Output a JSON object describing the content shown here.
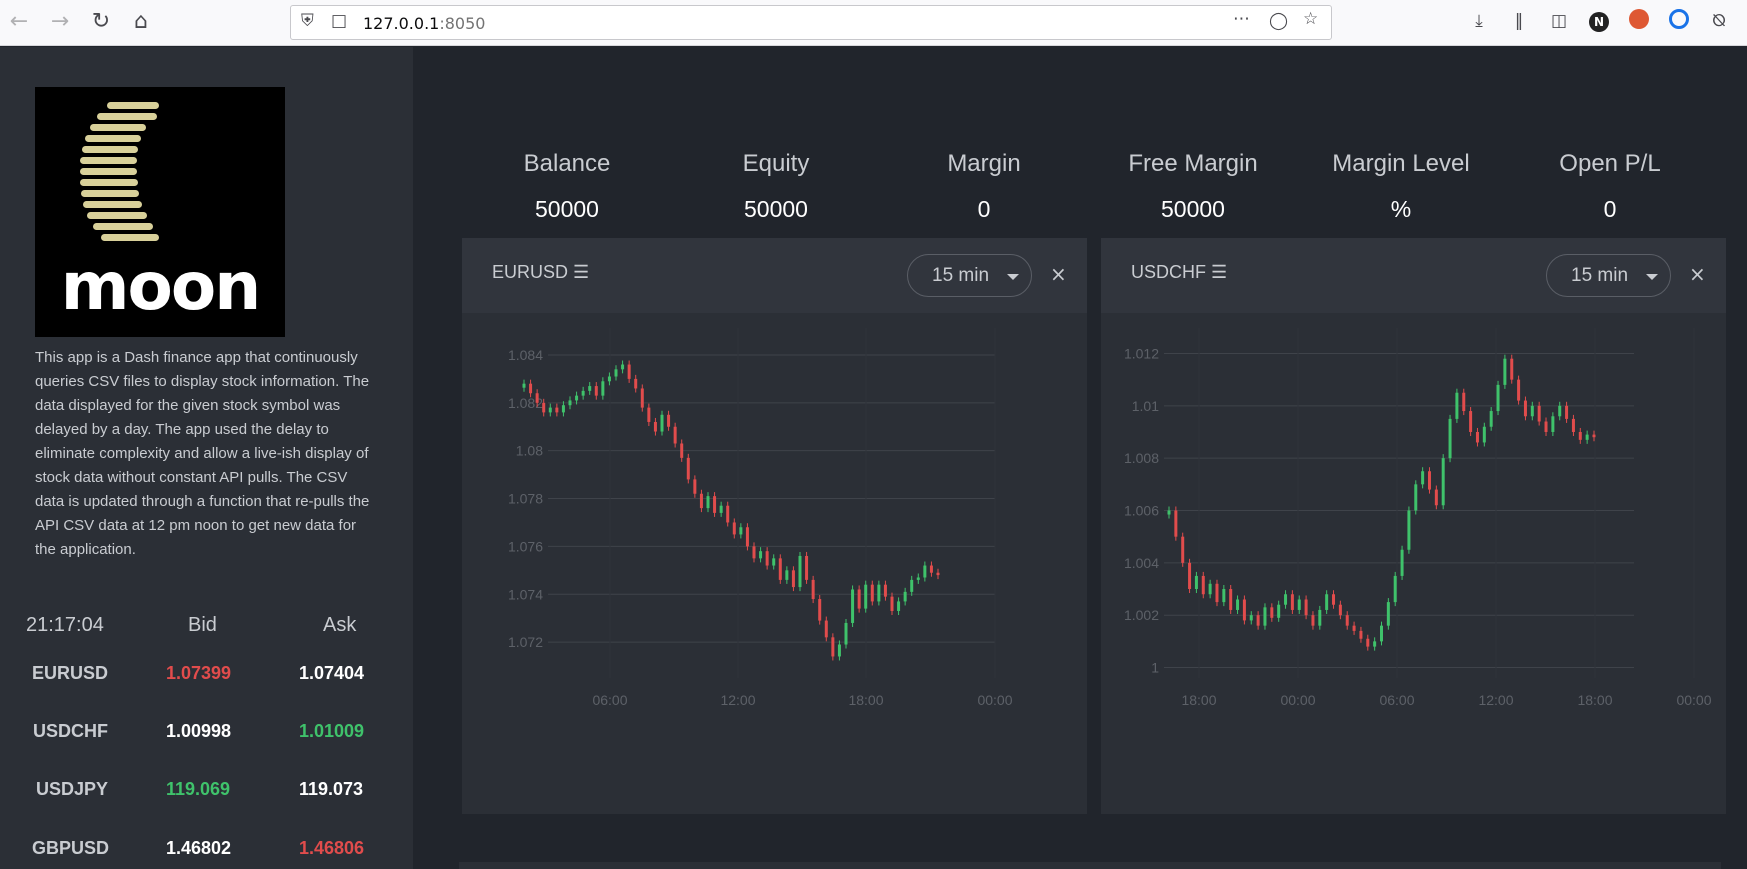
{
  "browser": {
    "url_host": "127.0.0.1",
    "url_port": ":8050",
    "icons": [
      "back-icon",
      "forward-icon",
      "reload-icon",
      "home-icon",
      "shield-icon",
      "page-icon",
      "more-icon",
      "pocket-icon",
      "star-icon",
      "download-icon",
      "library-icon",
      "sidebar-icon",
      "extension-n-icon",
      "extension-duck-icon",
      "extension-clock-icon",
      "extension-slash-icon"
    ]
  },
  "sidebar": {
    "logo_text": "moon",
    "description": "This app is a Dash finance app that continuously queries CSV files to display stock information. The data displayed for the given stock symbol was delayed by a day. The app used the delay to eliminate complexity and allow a live-ish display of stock data without constant API pulls. The CSV data is updated through a function that re-pulls the API CSV data at 12 pm noon to get new data for the application.",
    "quotes_header": {
      "time": "21:17:04",
      "bid": "Bid",
      "ask": "Ask"
    },
    "quotes": [
      {
        "symbol": "EURUSD",
        "bid": "1.07399",
        "ask": "1.07404",
        "bid_color": "#e14c4c",
        "ask_color": "#ffffff"
      },
      {
        "symbol": "USDCHF",
        "bid": "1.00998",
        "ask": "1.01009",
        "bid_color": "#ffffff",
        "ask_color": "#3fc26b"
      },
      {
        "symbol": "USDJPY",
        "bid": "119.069",
        "ask": "119.073",
        "bid_color": "#3fc26b",
        "ask_color": "#ffffff"
      },
      {
        "symbol": "GBPUSD",
        "bid": "1.46802",
        "ask": "1.46806",
        "bid_color": "#ffffff",
        "ask_color": "#e14c4c"
      }
    ]
  },
  "account": [
    {
      "label": "Balance",
      "value": "50000"
    },
    {
      "label": "Equity",
      "value": "50000"
    },
    {
      "label": "Margin",
      "value": "0"
    },
    {
      "label": "Free Margin",
      "value": "50000"
    },
    {
      "label": "Margin Level",
      "value": "%"
    },
    {
      "label": "Open P/L",
      "value": "0"
    }
  ],
  "panels": [
    {
      "title": "EURUSD ☰",
      "timeframe": "15 min",
      "close": "×",
      "chart_data": {
        "type": "candlestick",
        "x_ticks": [
          "06:00",
          "12:00",
          "18:00",
          "00:00"
        ],
        "y_ticks": [
          "1.084",
          "1.082",
          "1.08",
          "1.078",
          "1.076",
          "1.074",
          "1.072"
        ],
        "ylim": [
          1.0705,
          1.0845
        ],
        "up_color": "#3fc26b",
        "down_color": "#e14c4c",
        "closes": [
          1.0828,
          1.0824,
          1.082,
          1.0816,
          1.0818,
          1.0816,
          1.0819,
          1.0821,
          1.0823,
          1.0825,
          1.0827,
          1.0823,
          1.0829,
          1.0831,
          1.0834,
          1.0836,
          1.083,
          1.0826,
          1.0818,
          1.0812,
          1.0808,
          1.0815,
          1.081,
          1.0803,
          1.0797,
          1.0788,
          1.0782,
          1.0776,
          1.0781,
          1.0774,
          1.0777,
          1.077,
          1.0765,
          1.0768,
          1.076,
          1.0755,
          1.0758,
          1.0752,
          1.0755,
          1.0746,
          1.075,
          1.0743,
          1.0756,
          1.0746,
          1.0738,
          1.0729,
          1.0722,
          1.0714,
          1.0719,
          1.0728,
          1.0742,
          1.0734,
          1.0744,
          1.0737,
          1.0744,
          1.0739,
          1.0733,
          1.0737,
          1.0741,
          1.0746,
          1.0747,
          1.0752,
          1.0749,
          1.0748
        ]
      }
    },
    {
      "title": "USDCHF ☰",
      "timeframe": "15 min",
      "close": "×",
      "chart_data": {
        "type": "candlestick",
        "x_ticks": [
          "18:00",
          "00:00",
          "06:00",
          "12:00",
          "18:00",
          "00:00"
        ],
        "y_ticks": [
          "1.012",
          "1.01",
          "1.008",
          "1.006",
          "1.004",
          "1.002",
          "1"
        ],
        "ylim": [
          0.9996,
          1.0124
        ],
        "up_color": "#3fc26b",
        "down_color": "#e14c4c",
        "closes": [
          1.006,
          1.005,
          1.004,
          1.003,
          1.0035,
          1.0028,
          1.0032,
          1.0025,
          1.003,
          1.0022,
          1.0026,
          1.0018,
          1.002,
          1.0016,
          1.0023,
          1.0019,
          1.0024,
          1.0028,
          1.0022,
          1.0026,
          1.002,
          1.0016,
          1.0022,
          1.0028,
          1.0024,
          1.002,
          1.0016,
          1.0014,
          1.0011,
          1.0008,
          1.001,
          1.0016,
          1.0025,
          1.0035,
          1.0045,
          1.006,
          1.007,
          1.0075,
          1.0068,
          1.0062,
          1.008,
          1.0095,
          1.0105,
          1.0098,
          1.009,
          1.0086,
          1.0092,
          1.0098,
          1.0108,
          1.0118,
          1.011,
          1.0102,
          1.0096,
          1.01,
          1.0094,
          1.009,
          1.0096,
          1.01,
          1.0095,
          1.009,
          1.0087,
          1.0089,
          1.0088
        ]
      }
    }
  ]
}
